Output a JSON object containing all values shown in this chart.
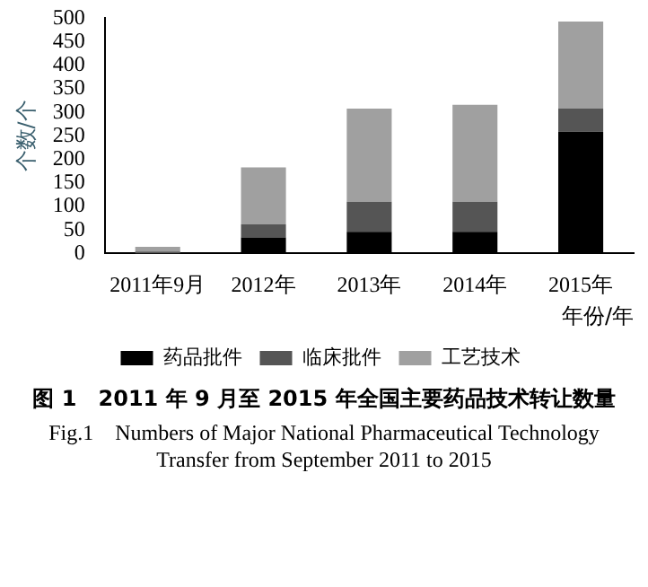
{
  "chart_data": {
    "type": "bar",
    "stacked": true,
    "title": "图 1　2011 年 9 月至 2015 年全国主要药品技术转让数量",
    "subtitle": "Fig.1　Numbers of Major National Pharmaceutical Technology Transfer from September 2011 to 2015",
    "xlabel": "年份/年",
    "ylabel": "个数/个",
    "categories": [
      "2011年9月",
      "2012年",
      "2013年",
      "2014年",
      "2015年"
    ],
    "series": [
      {
        "name": "药品批件",
        "color": "#000000",
        "values": [
          null,
          34,
          46,
          46,
          259
        ]
      },
      {
        "name": "临床批件",
        "color": "#555555",
        "values": [
          4,
          28,
          64,
          64,
          49
        ]
      },
      {
        "name": "工艺技术",
        "color": "#a0a0a0",
        "values": [
          10,
          121,
          198,
          206,
          185
        ]
      }
    ],
    "ylim": [
      0,
      500
    ],
    "yticks": [
      0,
      50,
      100,
      150,
      200,
      250,
      300,
      350,
      400,
      450,
      500
    ],
    "grid": false,
    "legend": "bottom"
  }
}
